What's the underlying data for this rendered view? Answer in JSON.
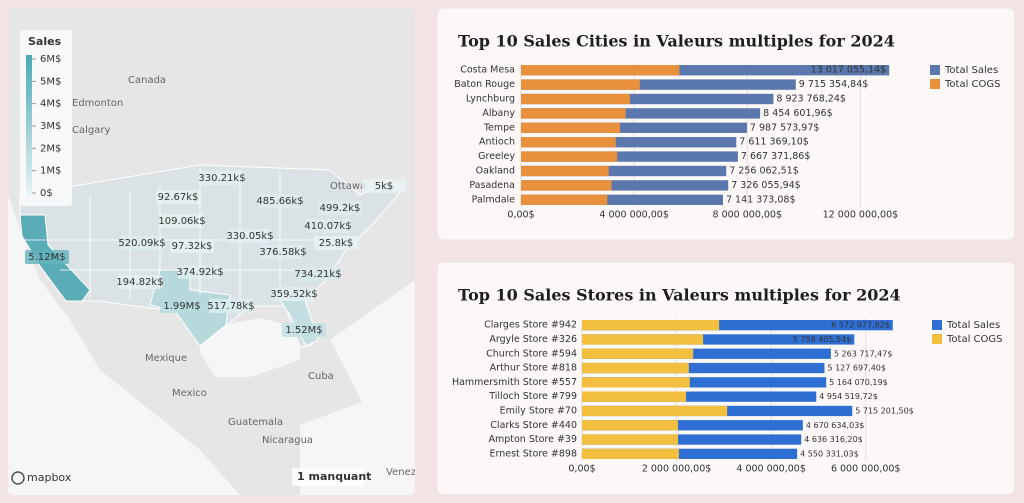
{
  "map": {
    "legend_title": "Sales",
    "legend_ticks": [
      {
        "value": 6000000,
        "label": "6M$"
      },
      {
        "value": 5000000,
        "label": "5M$"
      },
      {
        "value": 4000000,
        "label": "4M$"
      },
      {
        "value": 3000000,
        "label": "3M$"
      },
      {
        "value": 2000000,
        "label": "2M$"
      },
      {
        "value": 1000000,
        "label": "1M$"
      },
      {
        "value": 0,
        "label": "0$"
      }
    ],
    "places": [
      "Canada",
      "Edmonton",
      "Calgary",
      "Ottawa",
      "Mexique",
      "Mexico",
      "Cuba",
      "Guatemala",
      "Nicaragua",
      "Venez"
    ],
    "regions": [
      {
        "value": 330210,
        "label": "330.21k$"
      },
      {
        "value": 5000,
        "label": "5k$"
      },
      {
        "value": 92670,
        "label": "92.67k$"
      },
      {
        "value": 485660,
        "label": "485.66k$"
      },
      {
        "value": 499200,
        "label": "499.2k$"
      },
      {
        "value": 109060,
        "label": "109.06k$"
      },
      {
        "value": 410070,
        "label": "410.07k$"
      },
      {
        "value": 520090,
        "label": "520.09k$"
      },
      {
        "value": 97320,
        "label": "97.32k$"
      },
      {
        "value": 330050,
        "label": "330.05k$"
      },
      {
        "value": 25800,
        "label": "25.8k$"
      },
      {
        "value": 376580,
        "label": "376.58k$"
      },
      {
        "value": 5120000,
        "label": "5.12M$"
      },
      {
        "value": 374920,
        "label": "374.92k$"
      },
      {
        "value": 734210,
        "label": "734.21k$"
      },
      {
        "value": 194820,
        "label": "194.82k$"
      },
      {
        "value": 359520,
        "label": "359.52k$"
      },
      {
        "value": 1990000,
        "label": "1.99M$"
      },
      {
        "value": 517780,
        "label": "517.78k$"
      },
      {
        "value": 1520000,
        "label": "1.52M$"
      }
    ],
    "attribution": "mapbox",
    "missing_note": "1 manquant"
  },
  "chart_data": [
    {
      "type": "bar",
      "orientation": "horizontal",
      "barmode": "overlay",
      "legend": "right",
      "grid": true,
      "title": "Top 10 Sales Cities in Valeurs multiples for 2024",
      "categories": [
        "Costa Mesa",
        "Baton Rouge",
        "Lynchburg",
        "Albany",
        "Tempe",
        "Antioch",
        "Greeley",
        "Oakland",
        "Pasadena",
        "Palmdale"
      ],
      "series": [
        {
          "name": "Total Sales",
          "color": "#5a78ad",
          "values": [
            13017055.14,
            9715354.84,
            8923768.24,
            8454601.96,
            7987573.97,
            7611369.1,
            7667371.86,
            7256062.51,
            7326055.94,
            7141373.08
          ],
          "value_labels": [
            "13 017 055,14$",
            "9 715 354,84$",
            "8 923 768,24$",
            "8 454 601,96$",
            "7 987 573,97$",
            "7 611 369,10$",
            "7 667 371,86$",
            "7 256 062,51$",
            "7 326 055,94$",
            "7 141 373,08$"
          ]
        },
        {
          "name": "Total COGS",
          "color": "#e8903c",
          "values": [
            5600000,
            4200000,
            3850000,
            3700000,
            3500000,
            3350000,
            3400000,
            3100000,
            3200000,
            3050000
          ]
        }
      ],
      "xlim": [
        0,
        14000000
      ],
      "xticks": [
        {
          "value": 0,
          "label": "0,00$"
        },
        {
          "value": 4000000,
          "label": "4 000 000,00$"
        },
        {
          "value": 8000000,
          "label": "8 000 000,00$"
        },
        {
          "value": 12000000,
          "label": "12 000 000,00$"
        }
      ]
    },
    {
      "type": "bar",
      "orientation": "horizontal",
      "barmode": "overlay",
      "legend": "right",
      "grid": true,
      "title": "Top 10 Sales Stores in Valeurs multiples for 2024",
      "categories": [
        "Clarges Store #942",
        "Argyle Store #326",
        "Church Store #594",
        "Arthur Store #818",
        "Hammersmith Store #557",
        "Tilloch Store #799",
        "Emily Store #70",
        "Clarks Store #440",
        "Ampton Store #39",
        "Ernest Store #898"
      ],
      "series": [
        {
          "name": "Total Sales",
          "color": "#2f6fd4",
          "values": [
            6572977.82,
            5758405.54,
            5263717.47,
            5127697.4,
            5164070.19,
            4954519.72,
            5715201.5,
            4670634.03,
            4636316.2,
            4550331.03
          ],
          "value_labels": [
            "6 572 977,82$",
            "5 758 405,54$",
            "5 263 717,47$",
            "5 127 697,40$",
            "5 164 070,19$",
            "4 954 519,72$",
            "5 715 201,50$",
            "4 670 634,03$",
            "4 636 316,20$",
            "4 550 331,03$"
          ]
        },
        {
          "name": "Total COGS",
          "color": "#f2bf3e",
          "values": [
            2900000,
            2560000,
            2350000,
            2260000,
            2280000,
            2200000,
            3070000,
            2030000,
            2030000,
            2050000
          ]
        }
      ],
      "xlim": [
        0,
        7000000
      ],
      "xticks": [
        {
          "value": 0,
          "label": "0,00$"
        },
        {
          "value": 2000000,
          "label": "2 000 000,00$"
        },
        {
          "value": 4000000,
          "label": "4 000 000,00$"
        },
        {
          "value": 6000000,
          "label": "6 000 000,00$"
        }
      ]
    }
  ]
}
